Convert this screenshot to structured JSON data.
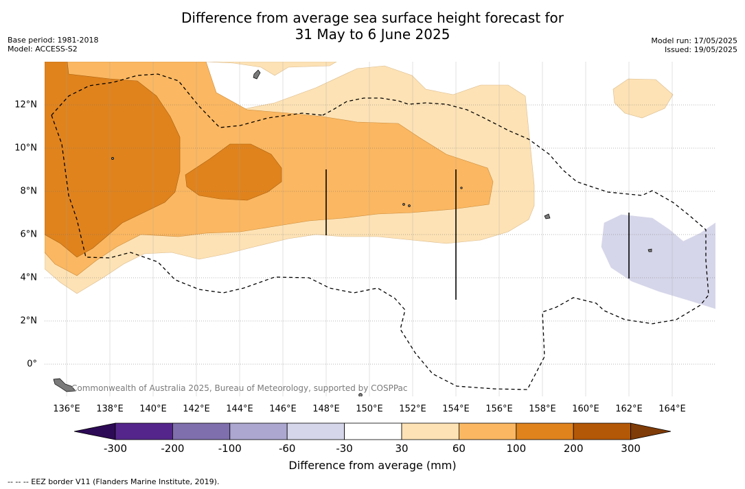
{
  "title_line1": "Difference from average sea surface height forecast for",
  "title_line2": "31 May to 6 June 2025",
  "meta_left": [
    "Base period: 1981-2018",
    "Model: ACCESS-S2"
  ],
  "meta_right": [
    "Model run: 17/05/2025",
    "Issued: 19/05/2025"
  ],
  "copyright": "Commonwealth of Australia 2025, Bureau of Meteorology, supported by COSPPac",
  "footnote": "--  --  -- EEZ border V11 (Flanders Marine Institute, 2019).",
  "map": {
    "x_ticks": [
      "136°E",
      "138°E",
      "140°E",
      "142°E",
      "144°E",
      "146°E",
      "148°E",
      "150°E",
      "152°E",
      "154°E",
      "156°E",
      "158°E",
      "160°E",
      "162°E",
      "164°E"
    ],
    "y_ticks": [
      "12°N",
      "10°N",
      "8°N",
      "6°N",
      "4°N",
      "2°N",
      "0°"
    ],
    "lon_range": [
      135,
      166
    ],
    "lat_range": [
      -1.5,
      14
    ]
  },
  "colorbar": {
    "title": "Difference from average (mm)",
    "labels": [
      "-300",
      "-200",
      "-100",
      "-60",
      "-30",
      "30",
      "60",
      "100",
      "200",
      "300"
    ],
    "colors": [
      "#2d0a55",
      "#54268b",
      "#7f6fad",
      "#aba7d0",
      "#d6d6ea",
      "#ffffff",
      "#fde2b5",
      "#fbb761",
      "#e0831d",
      "#b35806",
      "#7f3b08"
    ]
  }
}
